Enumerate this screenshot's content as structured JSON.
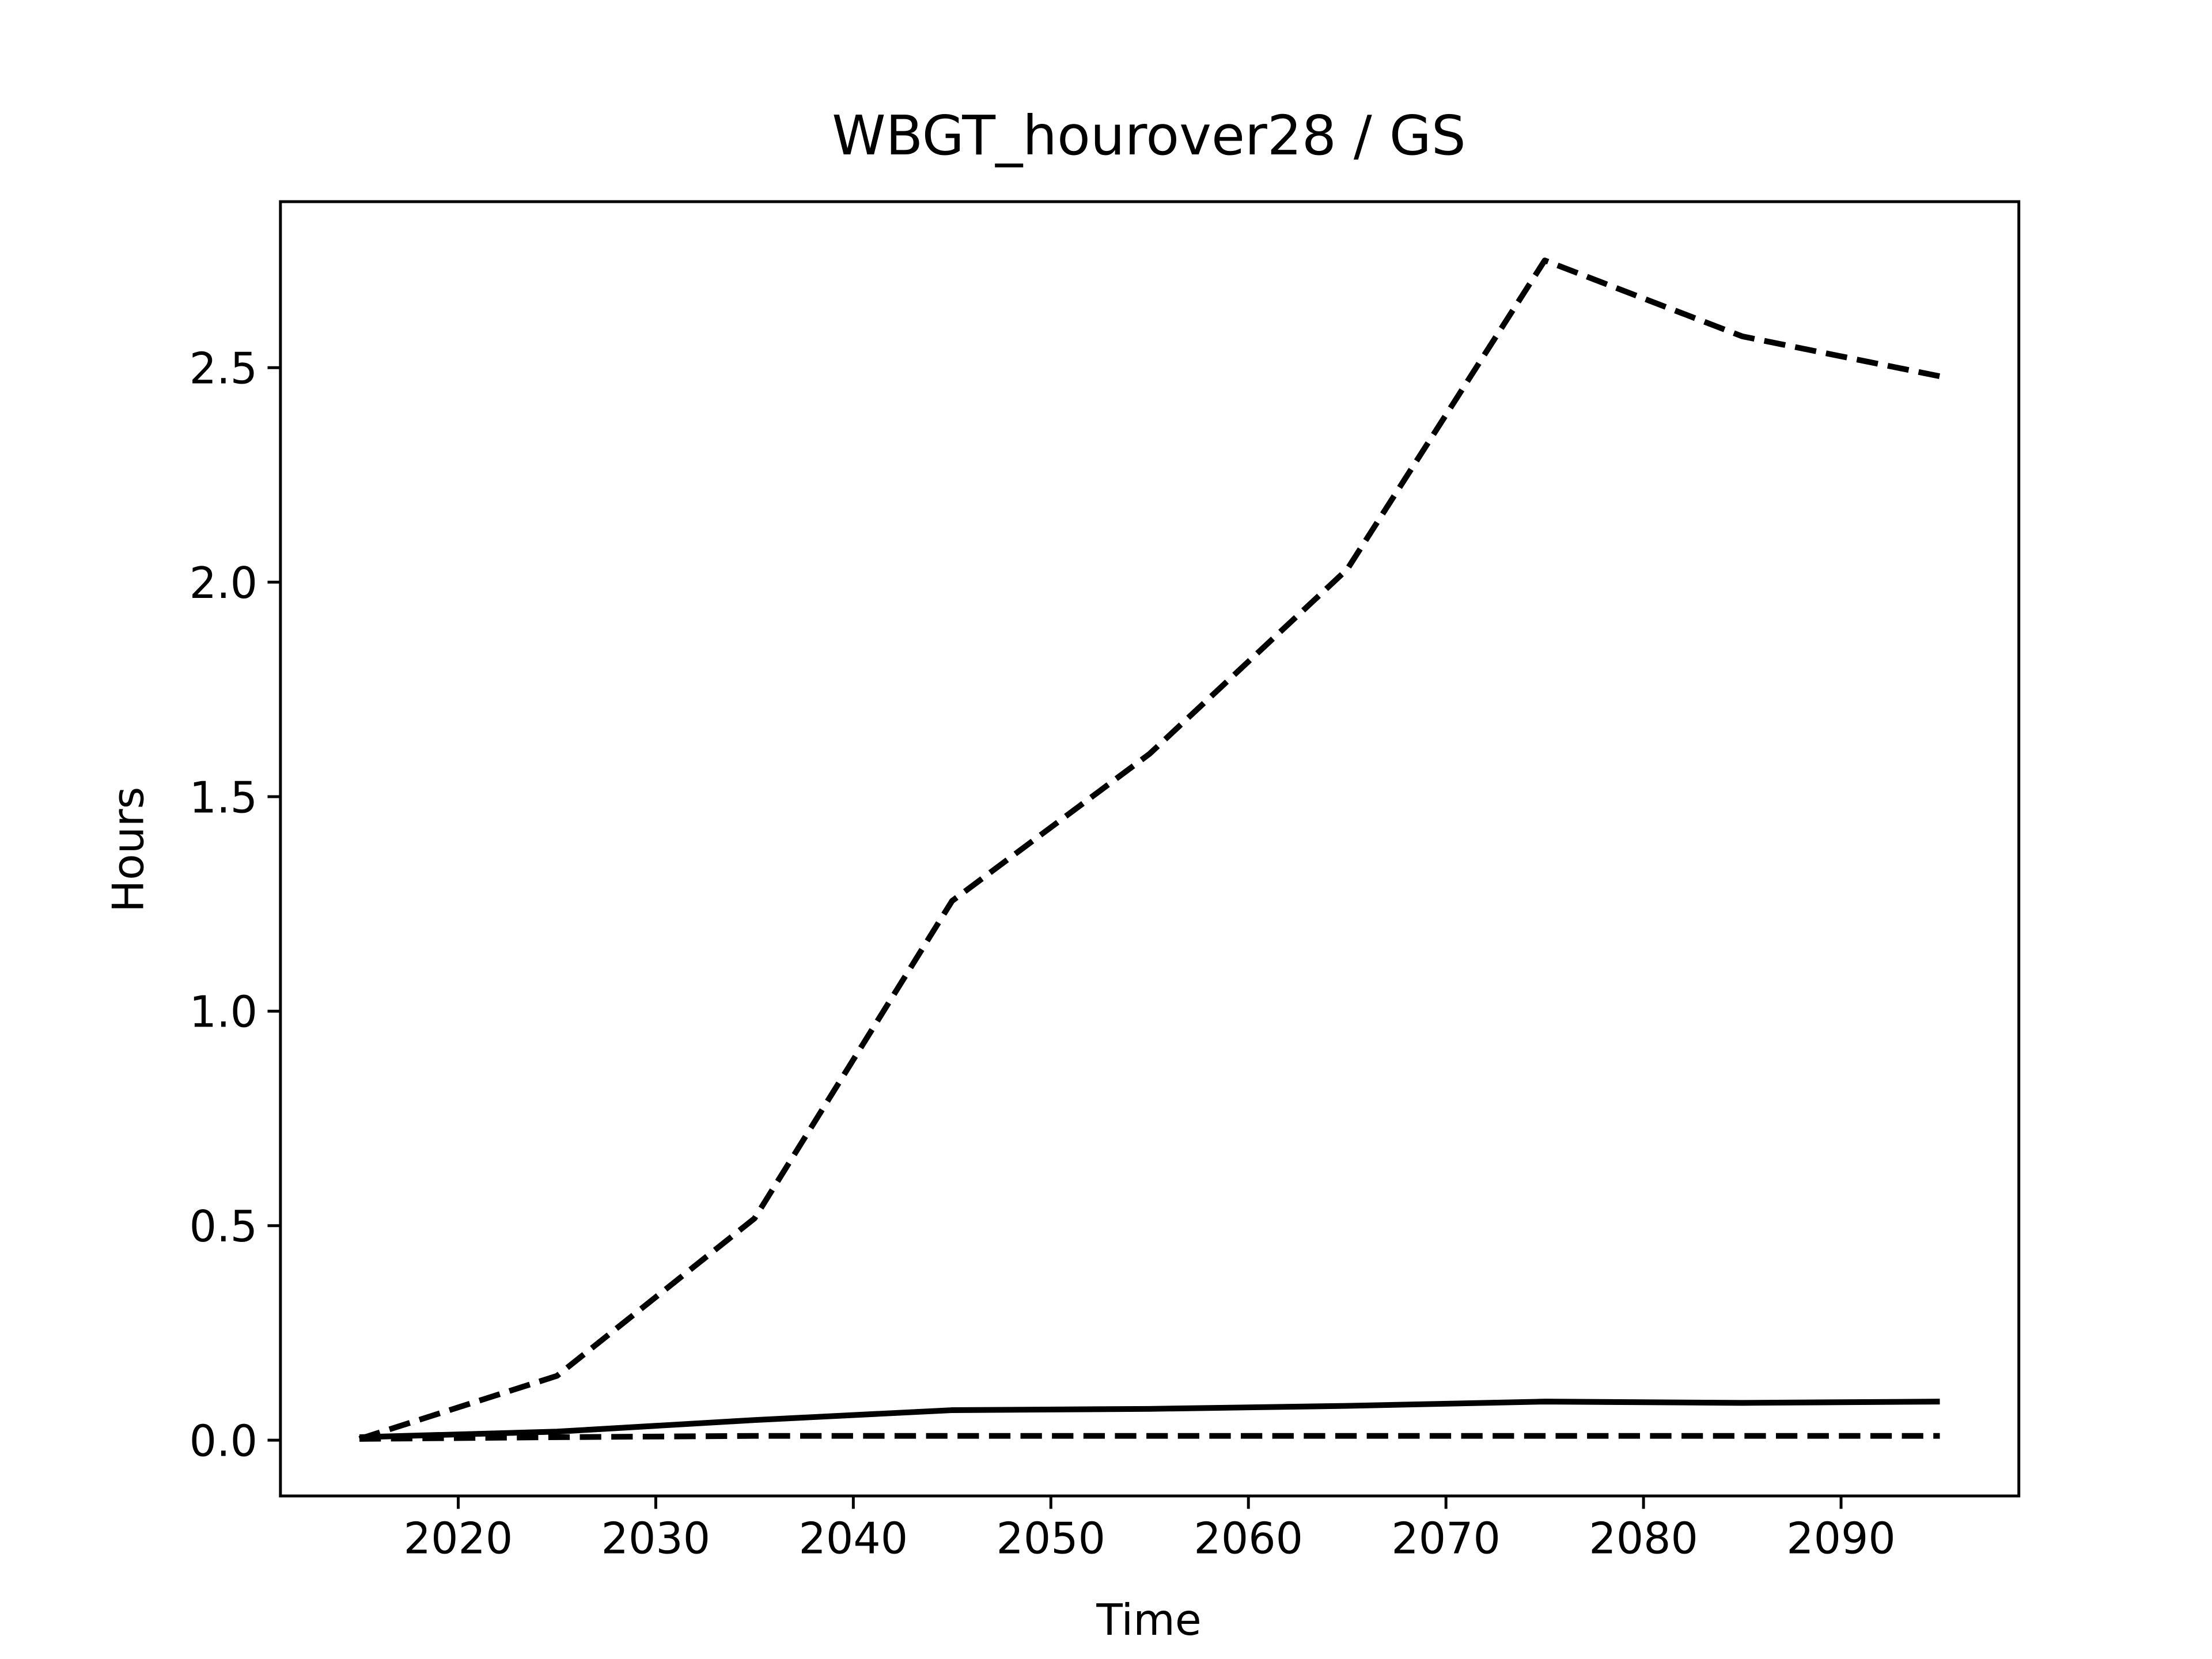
{
  "chart_data": {
    "type": "line",
    "title": "WBGT_hourover28 / GS",
    "x_label": "Time",
    "y_label": "Hours",
    "x": [
      2015,
      2025,
      2035,
      2045,
      2055,
      2065,
      2075,
      2085,
      2095
    ],
    "series": [
      {
        "color": "#000000",
        "dashed": true,
        "values": [
          0.003,
          0.15,
          0.517,
          1.257,
          1.6,
          2.03,
          2.75,
          2.573,
          2.48
        ]
      },
      {
        "color": "#000000",
        "dashed": false,
        "values": [
          0.007,
          0.02,
          0.047,
          0.07,
          0.073,
          0.08,
          0.09,
          0.087,
          0.09
        ]
      },
      {
        "color": "#000000",
        "dashed": true,
        "values": [
          0.003,
          0.007,
          0.01,
          0.01,
          0.01,
          0.01,
          0.01,
          0.01,
          0.01
        ]
      }
    ],
    "xlim": [
      2011,
      2099
    ],
    "ylim": [
      -0.13,
      2.887
    ],
    "xticks": [
      2020,
      2030,
      2040,
      2050,
      2060,
      2070,
      2080,
      2090
    ],
    "yticks": [
      {
        "value": 0,
        "label": "0.0"
      },
      0.5,
      {
        "value": 1,
        "label": "1.0"
      },
      1.5,
      {
        "value": 2,
        "label": "2.0"
      },
      2.5
    ]
  }
}
